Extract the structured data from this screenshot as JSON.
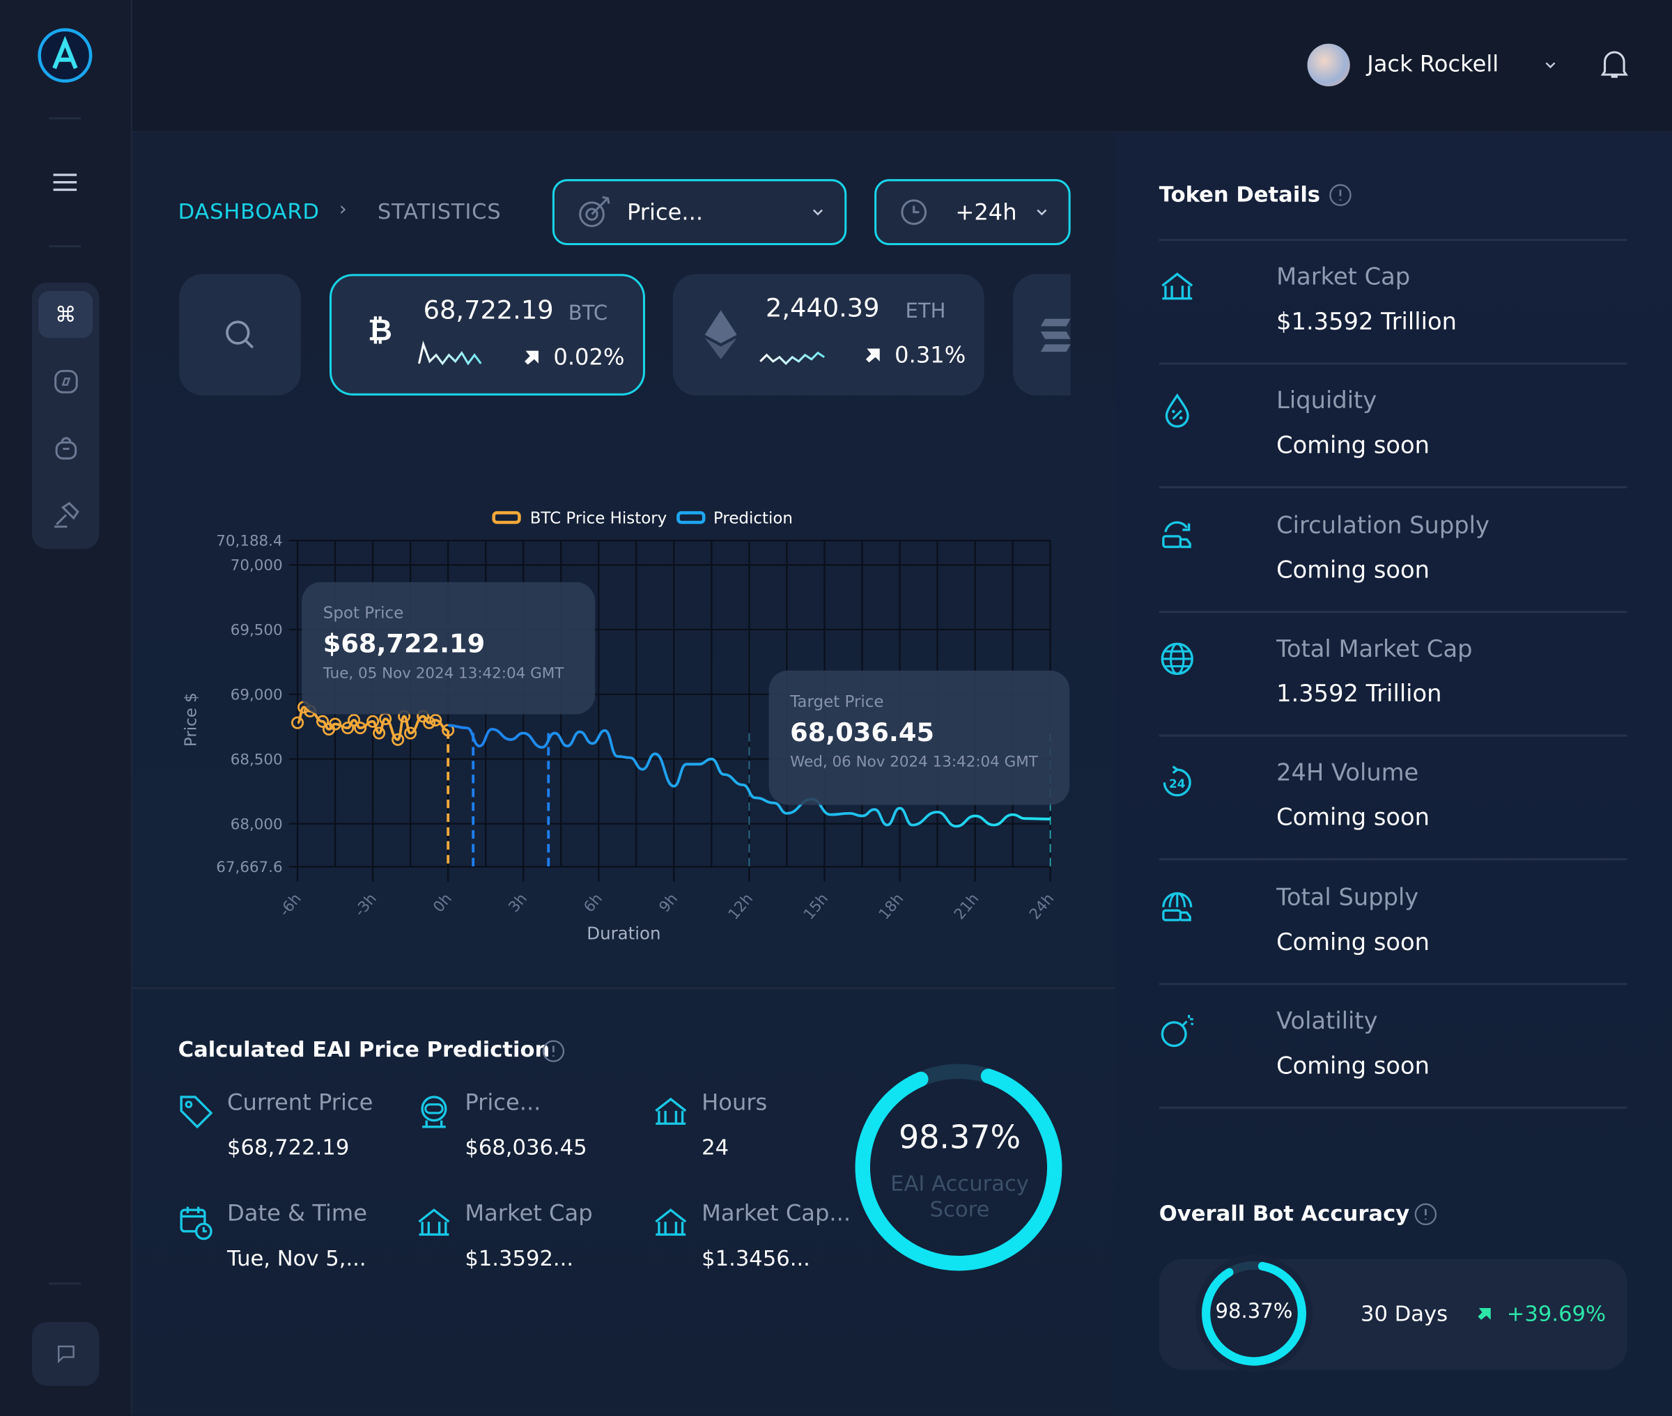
{
  "user": {
    "name": "Jack Rockell"
  },
  "breadcrumb": {
    "root": "DASHBOARD",
    "current": "STATISTICS"
  },
  "filters": {
    "metric": "Price...",
    "horizon": "+24h"
  },
  "tickers": [
    {
      "symbol": "BTC",
      "price": "68,722.19",
      "change": "0.02%",
      "icon": "bitcoin-icon"
    },
    {
      "symbol": "ETH",
      "price": "2,440.39",
      "change": "0.31%",
      "icon": "ethereum-icon"
    }
  ],
  "colors": {
    "accent": "#19d3e6",
    "history": "#f3a93a",
    "prediction": "#1ea7f0",
    "positive": "#2ee6a8"
  },
  "chart_data": {
    "type": "line",
    "xlabel": "Duration",
    "ylabel": "Price $",
    "xticks": [
      "-6h",
      "-3h",
      "0h",
      "3h",
      "6h",
      "9h",
      "12h",
      "15h",
      "18h",
      "21h",
      "24h"
    ],
    "xlim": [
      -6,
      24
    ],
    "yticks": [
      "70,188.4",
      "70,000",
      "69,500",
      "69,000",
      "68,500",
      "68,000",
      "67,667.6"
    ],
    "ytick_values": [
      70188.4,
      70000,
      69500,
      69000,
      68500,
      68000,
      67667.6
    ],
    "ylim": [
      67667.6,
      70188.4
    ],
    "grid": true,
    "legend": "top-center",
    "series": [
      {
        "name": "BTC Price History",
        "color": "#f3a93a",
        "markers": true,
        "x": [
          -6,
          -5.75,
          -5.5,
          -5,
          -4.75,
          -4.5,
          -4,
          -3.75,
          -3.5,
          -3,
          -2.75,
          -2.5,
          -2,
          -1.75,
          -1.5,
          -1,
          -0.75,
          -0.5,
          0
        ],
        "y": [
          68780,
          68900,
          68870,
          68790,
          68730,
          68770,
          68740,
          68800,
          68740,
          68790,
          68700,
          68810,
          68650,
          68830,
          68700,
          68830,
          68780,
          68800,
          68722
        ]
      },
      {
        "name": "Prediction",
        "color": "#1ea7f0",
        "markers": false,
        "x": [
          0,
          0.75,
          1.25,
          1.75,
          2.5,
          3,
          3.75,
          4.25,
          4.75,
          5.25,
          5.75,
          6.25,
          6.75,
          7.25,
          7.75,
          8.25,
          9,
          9.5,
          10,
          10.5,
          11,
          11.75,
          12.25,
          13,
          13.5,
          14.5,
          15.25,
          16,
          16.5,
          17,
          17.5,
          18,
          18.5,
          19.5,
          20.25,
          21,
          21.75,
          22.5,
          23,
          24
        ],
        "y": [
          68760,
          68740,
          68600,
          68730,
          68650,
          68700,
          68590,
          68700,
          68600,
          68710,
          68620,
          68720,
          68520,
          68510,
          68420,
          68540,
          68290,
          68460,
          68460,
          68500,
          68380,
          68300,
          68200,
          68160,
          68080,
          68190,
          68070,
          68080,
          68060,
          68110,
          67990,
          68120,
          67990,
          68090,
          67980,
          68060,
          67990,
          68070,
          68040,
          68036
        ]
      }
    ],
    "annotations": [
      {
        "label": "Spot Price",
        "value": "$68,722.19",
        "time": "Tue, 05 Nov 2024 13:42:04 GMT"
      },
      {
        "label": "Target Price",
        "value": "68,036.45",
        "time": "Wed, 06 Nov 2024 13:42:04 GMT"
      }
    ],
    "markers_x": [
      0,
      1,
      4,
      12,
      24
    ]
  },
  "prediction": {
    "title": "Calculated EAI Price Prediction",
    "items": [
      {
        "label": "Current Price",
        "value": "$68,722.19",
        "icon": "price-tag-icon"
      },
      {
        "label": "Price...",
        "value": "$68,036.45",
        "icon": "robot-icon"
      },
      {
        "label": "Hours",
        "value": "24",
        "icon": "bank-icon"
      },
      {
        "label": "Date & Time",
        "value": "Tue, Nov 5,...",
        "icon": "calendar-clock-icon"
      },
      {
        "label": "Market Cap",
        "value": "$1.3592...",
        "icon": "bank-icon"
      },
      {
        "label": "Market Cap...",
        "value": "$1.3456...",
        "icon": "bank-icon"
      }
    ],
    "score": {
      "value": "98.37%",
      "fraction": 0.9837,
      "label1": "EAI Accuracy",
      "label2": "Score"
    }
  },
  "token_details": {
    "title": "Token Details",
    "rows": [
      {
        "label": "Market Cap",
        "value": "$1.3592 Trillion",
        "icon": "bank-icon"
      },
      {
        "label": "Liquidity",
        "value": "Coming soon",
        "icon": "droplet-percent-icon"
      },
      {
        "label": "Circulation Supply",
        "value": "Coming soon",
        "icon": "truck-cycle-icon"
      },
      {
        "label": "Total Market Cap",
        "value": "1.3592 Trillion",
        "icon": "globe-icon"
      },
      {
        "label": "24H Volume",
        "value": "Coming soon",
        "icon": "24h-icon"
      },
      {
        "label": "Total Supply",
        "value": "Coming soon",
        "icon": "globe-truck-icon"
      },
      {
        "label": "Volatility",
        "value": "Coming soon",
        "icon": "bomb-icon"
      }
    ]
  },
  "bot_accuracy": {
    "title": "Overall Bot Accuracy",
    "value": "98.37%",
    "fraction": 0.9837,
    "period": "30 Days",
    "change": "+39.69%"
  }
}
